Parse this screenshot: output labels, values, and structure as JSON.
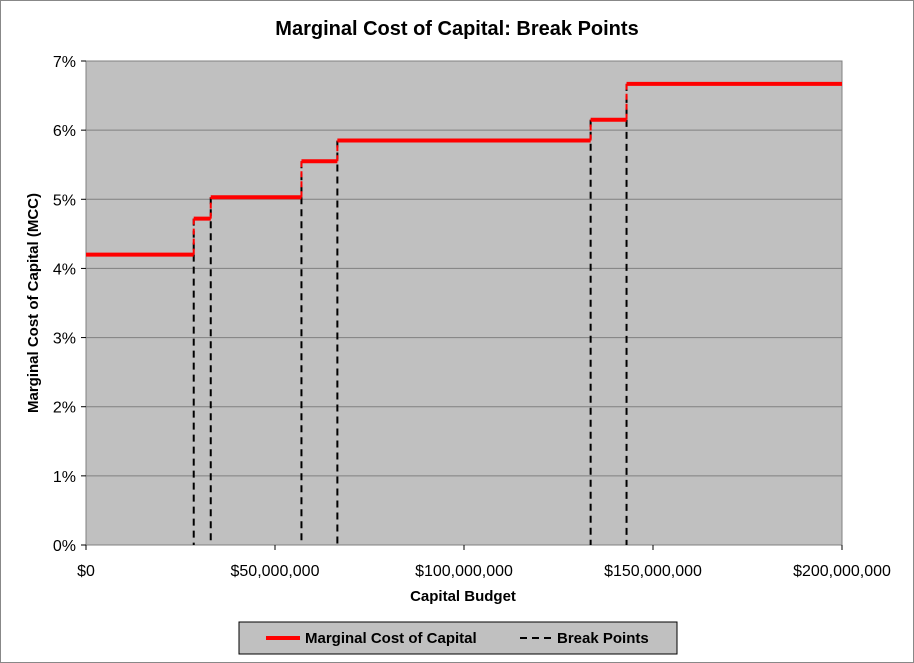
{
  "chart_data": {
    "type": "line",
    "title": "Marginal Cost of Capital: Break Points",
    "xlabel": "Capital Budget",
    "ylabel": "Marginal Cost of Capital (MCC)",
    "xlim": [
      0,
      200000000
    ],
    "ylim": [
      0,
      0.07
    ],
    "x_ticks": [
      0,
      50000000,
      100000000,
      150000000,
      200000000
    ],
    "x_tick_labels": [
      "$0",
      "$50,000,000",
      "$100,000,000",
      "$150,000,000",
      "$200,000,000"
    ],
    "y_ticks": [
      0,
      0.01,
      0.02,
      0.03,
      0.04,
      0.05,
      0.06,
      0.07
    ],
    "y_tick_labels": [
      "0%",
      "1%",
      "2%",
      "3%",
      "4%",
      "5%",
      "6%",
      "7%"
    ],
    "grid": true,
    "plot_background": "#c0c0c0",
    "legend_position": "bottom",
    "series": [
      {
        "name": "Marginal Cost of Capital",
        "color": "#ff0000",
        "style": "solid",
        "steps": [
          {
            "x_start": 0,
            "x_end": 28500000,
            "y": 0.042
          },
          {
            "x_start": 28500000,
            "x_end": 33000000,
            "y": 0.0472
          },
          {
            "x_start": 33000000,
            "x_end": 57000000,
            "y": 0.0503
          },
          {
            "x_start": 57000000,
            "x_end": 66500000,
            "y": 0.0555
          },
          {
            "x_start": 66500000,
            "x_end": 133500000,
            "y": 0.0585
          },
          {
            "x_start": 133500000,
            "x_end": 143000000,
            "y": 0.0615
          },
          {
            "x_start": 143000000,
            "x_end": 200000000,
            "y": 0.0667
          }
        ]
      },
      {
        "name": "Break Points",
        "color": "#000000",
        "style": "dashed",
        "break_points": [
          {
            "x": 28500000,
            "y": 0.0472
          },
          {
            "x": 33000000,
            "y": 0.0503
          },
          {
            "x": 57000000,
            "y": 0.0555
          },
          {
            "x": 66500000,
            "y": 0.0585
          },
          {
            "x": 133500000,
            "y": 0.0615
          },
          {
            "x": 143000000,
            "y": 0.0667
          }
        ]
      }
    ],
    "legend": [
      {
        "label": "Marginal Cost of Capital",
        "color": "#ff0000",
        "style": "solid"
      },
      {
        "label": "Break Points",
        "color": "#000000",
        "style": "dashed"
      }
    ]
  }
}
